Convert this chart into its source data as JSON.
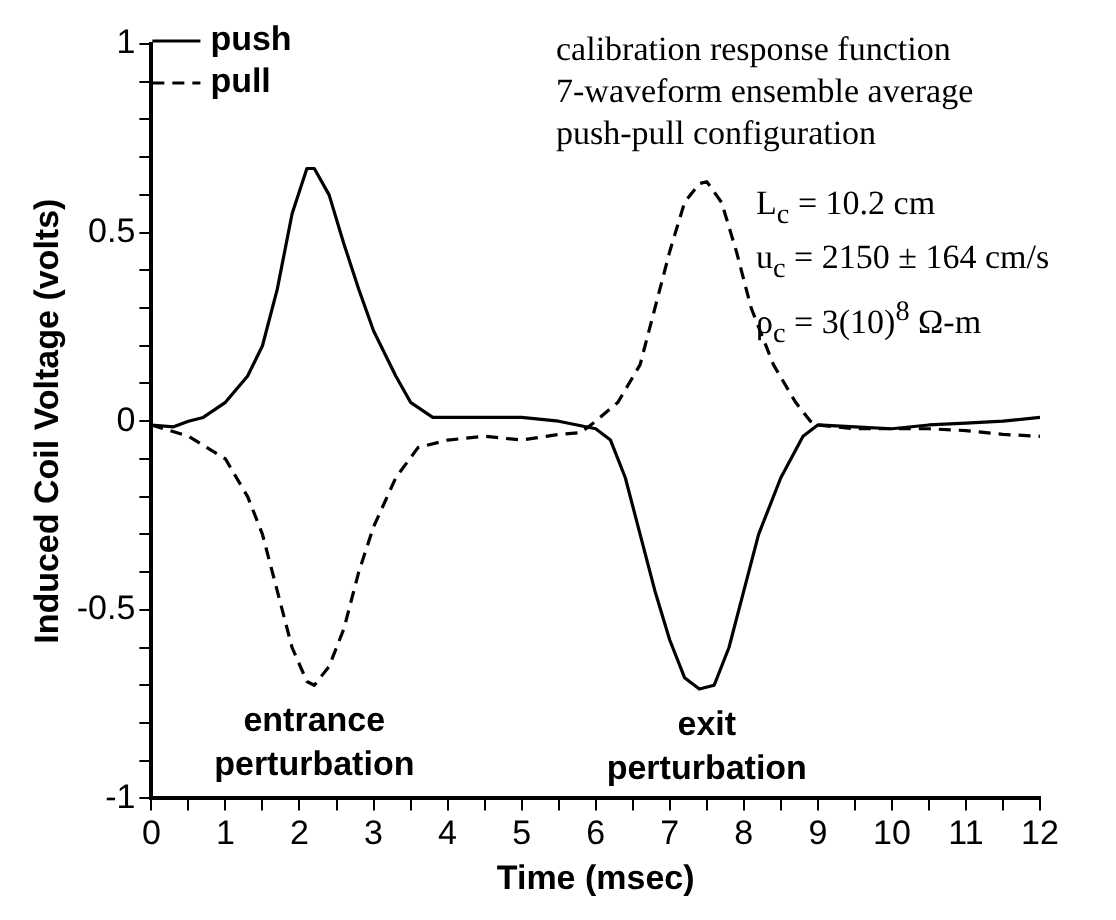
{
  "chart_data": {
    "type": "line",
    "xlabel": "Time (msec)",
    "ylabel": "Induced Coil Voltage (volts)",
    "xlim": [
      0,
      12
    ],
    "ylim": [
      -1,
      1
    ],
    "xticks": [
      0,
      {
        "value": 0.5,
        "label": null
      },
      1,
      {
        "value": 1.5,
        "label": null
      },
      2,
      {
        "value": 2.5,
        "label": null
      },
      3,
      {
        "value": 3.5,
        "label": null
      },
      4,
      {
        "value": 4.5,
        "label": null
      },
      5,
      {
        "value": 5.5,
        "label": null
      },
      6,
      {
        "value": 6.5,
        "label": null
      },
      7,
      {
        "value": 7.5,
        "label": null
      },
      8,
      {
        "value": 8.5,
        "label": null
      },
      9,
      {
        "value": 9.5,
        "label": null
      },
      10,
      {
        "value": 10.5,
        "label": null
      },
      11,
      {
        "value": 11.5,
        "label": null
      },
      12
    ],
    "yticks": [
      -1,
      {
        "value": -0.9,
        "label": null
      },
      {
        "value": -0.8,
        "label": null
      },
      {
        "value": -0.7,
        "label": null
      },
      {
        "value": -0.6,
        "label": null
      },
      -0.5,
      {
        "value": -0.4,
        "label": null
      },
      {
        "value": -0.3,
        "label": null
      },
      {
        "value": -0.2,
        "label": null
      },
      {
        "value": -0.1,
        "label": null
      },
      0,
      {
        "value": 0.1,
        "label": null
      },
      {
        "value": 0.2,
        "label": null
      },
      {
        "value": 0.3,
        "label": null
      },
      {
        "value": 0.4,
        "label": null
      },
      0.5,
      {
        "value": 0.6,
        "label": null
      },
      {
        "value": 0.7,
        "label": null
      },
      {
        "value": 0.8,
        "label": null
      },
      {
        "value": 0.9,
        "label": null
      },
      1
    ],
    "legend": "top left",
    "marker": "none",
    "series": [
      {
        "name": "push",
        "color": "#000000",
        "line_style": "solid",
        "x": [
          0,
          0.3,
          0.5,
          0.7,
          1.0,
          1.3,
          1.5,
          1.7,
          1.9,
          2.1,
          2.2,
          2.4,
          2.6,
          2.8,
          3.0,
          3.3,
          3.5,
          3.8,
          4,
          4.5,
          5,
          5.5,
          6,
          6.2,
          6.4,
          6.6,
          6.8,
          7.0,
          7.2,
          7.4,
          7.6,
          7.8,
          8.0,
          8.2,
          8.5,
          8.8,
          9.0,
          9.5,
          10,
          10.5,
          11,
          11.5,
          12
        ],
        "values": [
          -0.01,
          -0.015,
          0.0,
          0.01,
          0.05,
          0.12,
          0.2,
          0.35,
          0.55,
          0.67,
          0.67,
          0.6,
          0.47,
          0.35,
          0.24,
          0.12,
          0.05,
          0.01,
          0.01,
          0.01,
          0.01,
          0.0,
          -0.02,
          -0.05,
          -0.15,
          -0.3,
          -0.45,
          -0.58,
          -0.68,
          -0.71,
          -0.7,
          -0.6,
          -0.45,
          -0.3,
          -0.15,
          -0.04,
          -0.01,
          -0.015,
          -0.02,
          -0.01,
          -0.005,
          0.0,
          0.01
        ]
      },
      {
        "name": "pull",
        "color": "#000000",
        "line_style": "dashed",
        "x": [
          0,
          0.5,
          1,
          1.3,
          1.5,
          1.7,
          1.9,
          2.1,
          2.2,
          2.4,
          2.6,
          2.8,
          3.0,
          3.3,
          3.6,
          4,
          4.5,
          5,
          5.5,
          5.8,
          6.0,
          6.3,
          6.6,
          6.8,
          7.0,
          7.2,
          7.4,
          7.5,
          7.7,
          7.9,
          8.1,
          8.4,
          8.7,
          8.9,
          9.0,
          9.5,
          10,
          10.5,
          11,
          11.5,
          12
        ],
        "values": [
          -0.01,
          -0.04,
          -0.1,
          -0.2,
          -0.3,
          -0.45,
          -0.6,
          -0.69,
          -0.7,
          -0.65,
          -0.55,
          -0.4,
          -0.28,
          -0.15,
          -0.07,
          -0.05,
          -0.04,
          -0.05,
          -0.035,
          -0.03,
          0.0,
          0.05,
          0.15,
          0.3,
          0.45,
          0.58,
          0.63,
          0.635,
          0.58,
          0.45,
          0.3,
          0.15,
          0.05,
          0.0,
          -0.01,
          -0.02,
          -0.02,
          -0.02,
          -0.025,
          -0.035,
          -0.04
        ]
      }
    ],
    "annotations": [
      "calibration response function",
      "7-waveform ensemble average",
      "push-pull configuration",
      "L$_{c}$ = 10.2 cm",
      "u$_{c}$ = 2150 ± 164 cm/s",
      "ρ$_{c}$ = 3(10)$^{8}$ Ω-m",
      {
        "text": "entrance perturbation",
        "x": 2.2,
        "y": -0.72
      },
      {
        "text": "exit perturbation",
        "x": 7.5,
        "y": -0.73
      }
    ]
  }
}
